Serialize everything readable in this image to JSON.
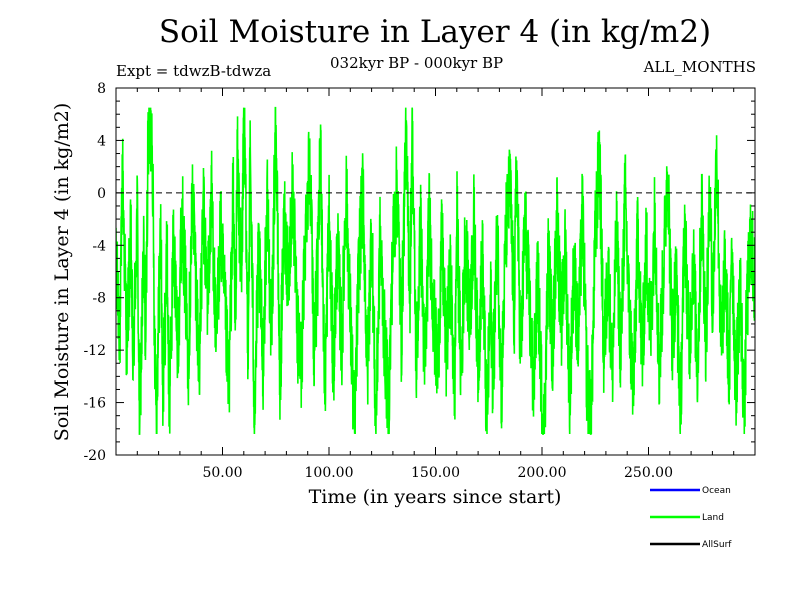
{
  "chart_data": {
    "type": "line",
    "title": "Soil Moisture in Layer 4 (in kg/m2)",
    "subtitle": "032kyr BP - 000kyr BP",
    "experiment": "Expt = tdwzB-tdwza",
    "period": "ALL_MONTHS",
    "xlabel": "Time (in years since start)",
    "ylabel": "Soil Moisture in Layer 4 (in kg/m2)",
    "xlim": [
      0,
      300
    ],
    "ylim": [
      -20,
      8
    ],
    "x_ticks": [
      50,
      100,
      150,
      200,
      250
    ],
    "x_tick_labels": [
      "50.00",
      "100.00",
      "150.00",
      "200.00",
      "250.00"
    ],
    "y_ticks": [
      -20,
      -16,
      -12,
      -8,
      -4,
      0,
      4,
      8
    ],
    "y_tick_labels": [
      "-20",
      "-16",
      "-12",
      "-8",
      "-4",
      "0",
      "4",
      "8"
    ],
    "reference_line": 0,
    "legend": [
      {
        "name": "Ocean",
        "color": "#0000ff"
      },
      {
        "name": "Land",
        "color": "#00ff00"
      },
      {
        "name": "AllSurf",
        "color": "#000000"
      }
    ],
    "series": [
      {
        "name": "Land",
        "color": "#00ff00",
        "n_points": 3600,
        "x_start": 0,
        "x_step": 0.0833,
        "mean_approx": -7,
        "observed_min": -18.4,
        "observed_max": 6.5,
        "note": "Monthly values of a noisy time series; shape approximated by anchor values below (x in years, y in kg/m2).",
        "anchors": [
          [
            0,
            -6
          ],
          [
            2,
            -10.5
          ],
          [
            3,
            2.1
          ],
          [
            5,
            -11.3
          ],
          [
            7,
            -3.5
          ],
          [
            8,
            -13.3
          ],
          [
            10,
            -1.2
          ],
          [
            11,
            -17.8
          ],
          [
            13,
            -4.5
          ],
          [
            14,
            -11.5
          ],
          [
            15,
            3.9
          ],
          [
            17,
            4.6
          ],
          [
            18,
            -9.8
          ],
          [
            19,
            -16.1
          ],
          [
            21,
            -2.5
          ],
          [
            22,
            -15.3
          ],
          [
            24,
            -4.4
          ],
          [
            25,
            -17.0
          ],
          [
            27,
            -3.3
          ],
          [
            29,
            -11.9
          ],
          [
            31,
            -1.1
          ],
          [
            34,
            -12.6
          ],
          [
            36,
            0.4
          ],
          [
            39,
            -13.4
          ],
          [
            41,
            -1.3
          ],
          [
            43,
            -8.0
          ],
          [
            45,
            0.3
          ],
          [
            47,
            -12.2
          ],
          [
            49,
            -2.5
          ],
          [
            51,
            -8.5
          ],
          [
            53,
            -15.1
          ],
          [
            55,
            0.2
          ],
          [
            56,
            -9.8
          ],
          [
            57,
            2.5
          ],
          [
            59,
            -7.3
          ],
          [
            60,
            6.5
          ],
          [
            62,
            -11.5
          ],
          [
            63,
            3.1
          ],
          [
            65,
            -16.9
          ],
          [
            67,
            -4.4
          ],
          [
            69,
            -13.2
          ],
          [
            71,
            -0.1
          ],
          [
            73,
            -11.4
          ],
          [
            75,
            5.9
          ],
          [
            77,
            -14.8
          ],
          [
            79,
            -1.7
          ],
          [
            81,
            -6.7
          ],
          [
            83,
            0.9
          ],
          [
            85,
            -10.5
          ],
          [
            87,
            -13.4
          ],
          [
            89,
            -2.6
          ],
          [
            91,
            3.3
          ],
          [
            93,
            -11.9
          ],
          [
            95,
            -4.6
          ],
          [
            96,
            4.3
          ],
          [
            98,
            -15.4
          ],
          [
            100,
            -1.6
          ],
          [
            102,
            -13.5
          ],
          [
            104,
            -4.2
          ],
          [
            106,
            -11.8
          ],
          [
            108,
            0.5
          ],
          [
            110,
            -9.4
          ],
          [
            112,
            -18.3
          ],
          [
            114,
            -5.2
          ],
          [
            116,
            0.1
          ],
          [
            118,
            -14.3
          ],
          [
            120,
            -2.2
          ],
          [
            122,
            -17.9
          ],
          [
            124,
            -3.4
          ],
          [
            126,
            -11.0
          ],
          [
            128,
            -16.6
          ],
          [
            130,
            -4.0
          ],
          [
            132,
            0.8
          ],
          [
            134,
            -11.3
          ],
          [
            136,
            4.5
          ],
          [
            138,
            -7.5
          ],
          [
            139,
            5.0
          ],
          [
            141,
            -13.2
          ],
          [
            143,
            -2.4
          ],
          [
            145,
            -14.3
          ],
          [
            147,
            -1.5
          ],
          [
            149,
            -9.1
          ],
          [
            151,
            -13.7
          ],
          [
            153,
            -3.5
          ],
          [
            155,
            -12.2
          ],
          [
            157,
            -6.2
          ],
          [
            159,
            -15.5
          ],
          [
            160,
            -1.3
          ],
          [
            162,
            -14.1
          ],
          [
            164,
            -3.2
          ],
          [
            166,
            -10.0
          ],
          [
            168,
            -2.0
          ],
          [
            170,
            -13.3
          ],
          [
            172,
            -4.6
          ],
          [
            174,
            -17.3
          ],
          [
            176,
            -8.3
          ],
          [
            177,
            -14.6
          ],
          [
            179,
            -2.7
          ],
          [
            181,
            -15.3
          ],
          [
            183,
            -3.1
          ],
          [
            185,
            0.6
          ],
          [
            187,
            -9.4
          ],
          [
            188,
            2.8
          ],
          [
            190,
            -12.8
          ],
          [
            192,
            -1.9
          ],
          [
            194,
            -8.2
          ],
          [
            196,
            -14.9
          ],
          [
            198,
            -6.2
          ],
          [
            200,
            -16.0
          ],
          [
            201,
            -18.4
          ],
          [
            203,
            -4.6
          ],
          [
            205,
            -12.3
          ],
          [
            207,
            -1.4
          ],
          [
            209,
            -10.2
          ],
          [
            211,
            -4.2
          ],
          [
            213,
            -15.4
          ],
          [
            215,
            -5.4
          ],
          [
            217,
            -11.4
          ],
          [
            219,
            -1.2
          ],
          [
            221,
            -13.9
          ],
          [
            223,
            -18.1
          ],
          [
            225,
            -3.3
          ],
          [
            227,
            3.2
          ],
          [
            229,
            -12.6
          ],
          [
            231,
            -5.5
          ],
          [
            233,
            -13.7
          ],
          [
            235,
            -3.1
          ],
          [
            237,
            -12.5
          ],
          [
            239,
            0.1
          ],
          [
            241,
            -9.6
          ],
          [
            243,
            -15.0
          ],
          [
            245,
            -2.5
          ],
          [
            247,
            -13.1
          ],
          [
            249,
            -3.8
          ],
          [
            251,
            -10.9
          ],
          [
            253,
            -1.2
          ],
          [
            255,
            -13.6
          ],
          [
            257,
            -6.1
          ],
          [
            259,
            2.7
          ],
          [
            261,
            -11.3
          ],
          [
            263,
            -6.4
          ],
          [
            265,
            -16.7
          ],
          [
            267,
            -2.2
          ],
          [
            269,
            -12.1
          ],
          [
            271,
            -5.0
          ],
          [
            273,
            -13.5
          ],
          [
            275,
            -0.8
          ],
          [
            277,
            -11.4
          ],
          [
            279,
            1.2
          ],
          [
            280,
            -9.7
          ],
          [
            282,
            3.6
          ],
          [
            284,
            -12.0
          ],
          [
            286,
            -5.6
          ],
          [
            288,
            -14.5
          ],
          [
            289,
            -2.5
          ],
          [
            291,
            -15.0
          ],
          [
            293,
            -6.8
          ],
          [
            295,
            -17.4
          ],
          [
            296,
            -9.5
          ],
          [
            298,
            -3.2
          ],
          [
            300,
            -7.2
          ]
        ]
      }
    ]
  }
}
